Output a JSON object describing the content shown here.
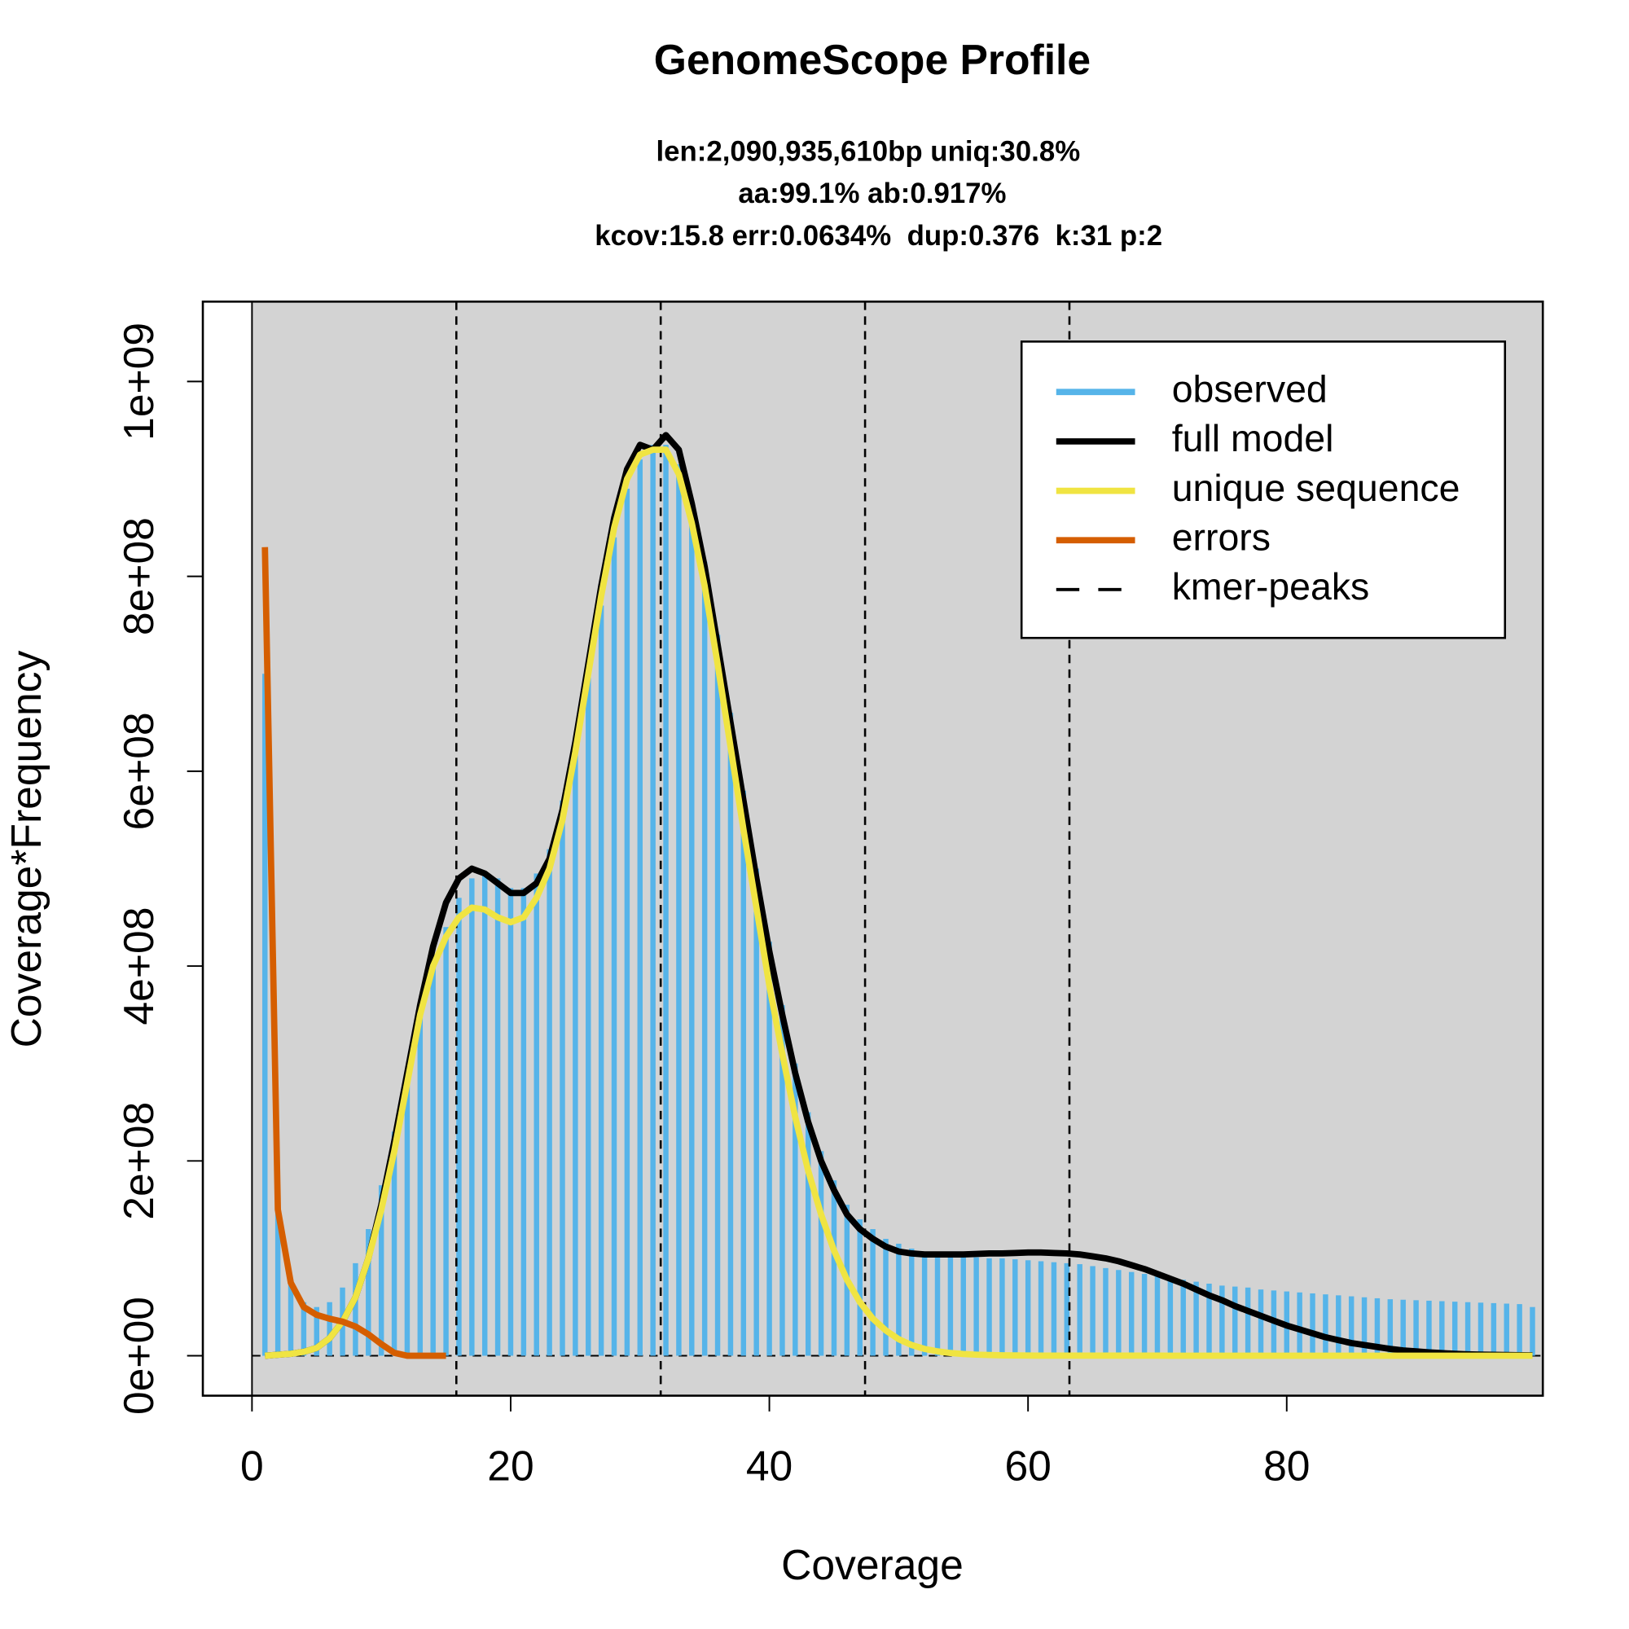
{
  "chart_data": {
    "type": "bar",
    "title": "GenomeScope Profile",
    "subtitle": [
      "len:2,090,935,610bp uniq:30.8%",
      "aa:99.1% ab:0.917%",
      "kcov:15.8 err:0.0634%  dup:0.376  k:31 p:2"
    ],
    "x_label": "Coverage",
    "y_label": "Coverage*Frequency",
    "x": [
      1,
      2,
      3,
      4,
      5,
      6,
      7,
      8,
      9,
      10,
      11,
      12,
      13,
      14,
      15,
      16,
      17,
      18,
      19,
      20,
      21,
      22,
      23,
      24,
      25,
      26,
      27,
      28,
      29,
      30,
      31,
      32,
      33,
      34,
      35,
      36,
      37,
      38,
      39,
      40,
      41,
      42,
      43,
      44,
      45,
      46,
      47,
      48,
      49,
      50,
      51,
      52,
      53,
      54,
      55,
      56,
      57,
      58,
      59,
      60,
      61,
      62,
      63,
      64,
      65,
      66,
      67,
      68,
      69,
      70,
      71,
      72,
      73,
      74,
      75,
      76,
      77,
      78,
      79,
      80,
      81,
      82,
      83,
      84,
      85,
      86,
      87,
      88,
      89,
      90,
      91,
      92,
      93,
      94,
      95,
      96,
      97,
      98,
      99
    ],
    "series": [
      {
        "name": "observed",
        "type": "bar",
        "color": "#56B4E9",
        "values": [
          700000000.0,
          150000000.0,
          75000000.0,
          55000000.0,
          50000000.0,
          55000000.0,
          70000000.0,
          95000000.0,
          130000000.0,
          175000000.0,
          230000000.0,
          290000000.0,
          350000000.0,
          400000000.0,
          440000000.0,
          470000000.0,
          490000000.0,
          495000000.0,
          490000000.0,
          480000000.0,
          480000000.0,
          495000000.0,
          520000000.0,
          570000000.0,
          630000000.0,
          700000000.0,
          770000000.0,
          840000000.0,
          890000000.0,
          920000000.0,
          935000000.0,
          935000000.0,
          915000000.0,
          875000000.0,
          815000000.0,
          740000000.0,
          660000000.0,
          580000000.0,
          500000000.0,
          425000000.0,
          360000000.0,
          300000000.0,
          250000000.0,
          210000000.0,
          180000000.0,
          155000000.0,
          140000000.0,
          130000000.0,
          120000000.0,
          115000000.0,
          110000000.0,
          107000000.0,
          105000000.0,
          103000000.0,
          102000000.0,
          101000000.0,
          100000000.0,
          100000000.0,
          99000000.0,
          98000000.0,
          97000000.0,
          96000000.0,
          95000000.0,
          94000000.0,
          92000000.0,
          90000000.0,
          88000000.0,
          86000000.0,
          84000000.0,
          82000000.0,
          80000000.0,
          78000000.0,
          76000000.0,
          74000000.0,
          72000000.0,
          71000000.0,
          70000000.0,
          68000000.0,
          67000000.0,
          66000000.0,
          65000000.0,
          64000000.0,
          63000000.0,
          62000000.0,
          61000000.0,
          60000000.0,
          59000000.0,
          58000000.0,
          57500000.0,
          57000000.0,
          56500000.0,
          56000000.0,
          55500000.0,
          55000000.0,
          54500000.0,
          54000000.0,
          53500000.0,
          53000000.0,
          50000000.0
        ]
      },
      {
        "name": "full model",
        "type": "line",
        "color": "#000000",
        "values": [
          0,
          1000000.0,
          2000000.0,
          4000000.0,
          8000000.0,
          18000000.0,
          35000000.0,
          60000000.0,
          100000000.0,
          155000000.0,
          220000000.0,
          290000000.0,
          360000000.0,
          420000000.0,
          465000000.0,
          490000000.0,
          500000000.0,
          495000000.0,
          485000000.0,
          475000000.0,
          475000000.0,
          485000000.0,
          510000000.0,
          560000000.0,
          630000000.0,
          710000000.0,
          790000000.0,
          860000000.0,
          910000000.0,
          935000000.0,
          930000000.0,
          945000000.0,
          930000000.0,
          875000000.0,
          810000000.0,
          730000000.0,
          650000000.0,
          570000000.0,
          490000000.0,
          415000000.0,
          350000000.0,
          290000000.0,
          240000000.0,
          200000000.0,
          170000000.0,
          145000000.0,
          130000000.0,
          120000000.0,
          112000000.0,
          107000000.0,
          105000000.0,
          104000000.0,
          104000000.0,
          104000000.0,
          104000000.0,
          104500000.0,
          105000000.0,
          105000000.0,
          105500000.0,
          106000000.0,
          106000000.0,
          105500000.0,
          105000000.0,
          104000000.0,
          102000000.0,
          100000000.0,
          97000000.0,
          93000000.0,
          89000000.0,
          84000000.0,
          79000000.0,
          74000000.0,
          68000000.0,
          62000000.0,
          57000000.0,
          51000000.0,
          46000000.0,
          41000000.0,
          36000000.0,
          31000000.0,
          27000000.0,
          23000000.0,
          19000000.0,
          16000000.0,
          13000000.0,
          11000000.0,
          9000000.0,
          7000000.0,
          5500000.0,
          4500000.0,
          3500000.0,
          2700000.0,
          2000000.0,
          1500000.0,
          1200000.0,
          900000.0,
          700000.0,
          500000.0,
          400000.0
        ]
      },
      {
        "name": "unique sequence",
        "type": "line",
        "color": "#F0E442",
        "values": [
          0,
          1000000.0,
          2000000.0,
          4000000.0,
          8000000.0,
          18000000.0,
          35000000.0,
          60000000.0,
          100000000.0,
          150000000.0,
          210000000.0,
          280000000.0,
          350000000.0,
          400000000.0,
          430000000.0,
          450000000.0,
          460000000.0,
          458000000.0,
          450000000.0,
          445000000.0,
          450000000.0,
          470000000.0,
          500000000.0,
          550000000.0,
          620000000.0,
          700000000.0,
          780000000.0,
          850000000.0,
          900000000.0,
          925000000.0,
          930000000.0,
          930000000.0,
          905000000.0,
          855000000.0,
          790000000.0,
          710000000.0,
          625000000.0,
          540000000.0,
          460000000.0,
          380000000.0,
          310000000.0,
          245000000.0,
          190000000.0,
          145000000.0,
          108000000.0,
          78000000.0,
          55000000.0,
          38000000.0,
          26000000.0,
          17000000.0,
          11000000.0,
          7000000.0,
          4500000.0,
          2800000.0,
          1800000.0,
          1100000.0,
          700000.0,
          400000.0,
          300000.0,
          200000.0,
          100000.0,
          100000.0,
          100000.0,
          100000.0,
          100000.0,
          100000.0,
          100000.0,
          100000.0,
          100000.0,
          100000.0,
          0,
          0,
          0,
          0,
          0,
          0,
          0,
          0,
          0,
          0,
          0,
          0,
          0,
          0,
          0,
          0,
          0,
          0,
          0,
          0,
          0,
          0,
          0,
          0,
          0,
          0,
          0,
          0,
          0
        ]
      },
      {
        "name": "errors",
        "type": "line",
        "color": "#D55E00",
        "values": [
          830000000.0,
          150000000.0,
          75000000.0,
          50000000.0,
          42000000.0,
          38000000.0,
          35000000.0,
          30000000.0,
          22000000.0,
          12000000.0,
          3000000.0,
          0,
          0,
          0,
          0,
          null,
          null,
          null,
          null,
          null,
          null,
          null,
          null,
          null,
          null,
          null,
          null,
          null,
          null,
          null,
          null,
          null,
          null,
          null,
          null,
          null,
          null,
          null,
          null,
          null,
          null,
          null,
          null,
          null,
          null,
          null,
          null,
          null,
          null,
          null,
          null,
          null,
          null,
          null,
          null,
          null,
          null,
          null,
          null,
          null,
          null,
          null,
          null,
          null,
          null,
          null,
          null,
          null,
          null,
          null,
          null,
          null,
          null,
          null,
          null,
          null,
          null,
          null,
          null,
          null,
          null,
          null,
          null,
          null,
          null,
          null,
          null,
          null,
          null,
          null,
          null,
          null,
          null,
          null,
          null,
          null,
          null,
          null,
          null
        ]
      }
    ],
    "kmer_peaks": {
      "name": "kmer-peaks",
      "color": "#000000",
      "values": [
        15.8,
        31.6,
        47.4,
        63.2
      ]
    },
    "xlim": [
      -3.8,
      99.8
    ],
    "ylim": [
      -41000000.0,
      1082000000.0
    ],
    "xticks": [
      0,
      20,
      40,
      60,
      80
    ],
    "yticks": [
      {
        "value": 0,
        "label": "0e+00"
      },
      {
        "value": 200000000.0,
        "label": "2e+08"
      },
      {
        "value": 400000000.0,
        "label": "4e+08"
      },
      {
        "value": 600000000.0,
        "label": "6e+08"
      },
      {
        "value": 800000000.0,
        "label": "8e+08"
      },
      {
        "value": 1000000000.0,
        "label": "1e+09"
      }
    ],
    "legend": "topright",
    "background": "#D3D3D3"
  }
}
